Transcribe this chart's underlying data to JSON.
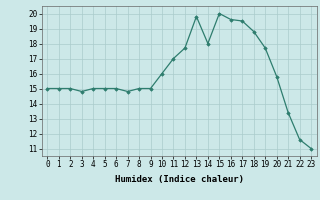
{
  "x": [
    0,
    1,
    2,
    3,
    4,
    5,
    6,
    7,
    8,
    9,
    10,
    11,
    12,
    13,
    14,
    15,
    16,
    17,
    18,
    19,
    20,
    21,
    22,
    23
  ],
  "y": [
    15.0,
    15.0,
    15.0,
    14.8,
    15.0,
    15.0,
    15.0,
    14.8,
    15.0,
    15.0,
    16.0,
    17.0,
    17.7,
    19.8,
    18.0,
    20.0,
    19.6,
    19.5,
    18.8,
    17.7,
    15.8,
    13.4,
    11.6,
    11.0
  ],
  "line_color": "#2e7d6e",
  "marker": "D",
  "marker_size": 1.8,
  "xlabel": "Humidex (Indice chaleur)",
  "xlim": [
    -0.5,
    23.5
  ],
  "ylim": [
    10.5,
    20.5
  ],
  "xticks": [
    0,
    1,
    2,
    3,
    4,
    5,
    6,
    7,
    8,
    9,
    10,
    11,
    12,
    13,
    14,
    15,
    16,
    17,
    18,
    19,
    20,
    21,
    22,
    23
  ],
  "yticks": [
    11,
    12,
    13,
    14,
    15,
    16,
    17,
    18,
    19,
    20
  ],
  "bg_color": "#cce8e8",
  "grid_color": "#aacccc",
  "label_fontsize": 6.5,
  "tick_fontsize": 5.5
}
